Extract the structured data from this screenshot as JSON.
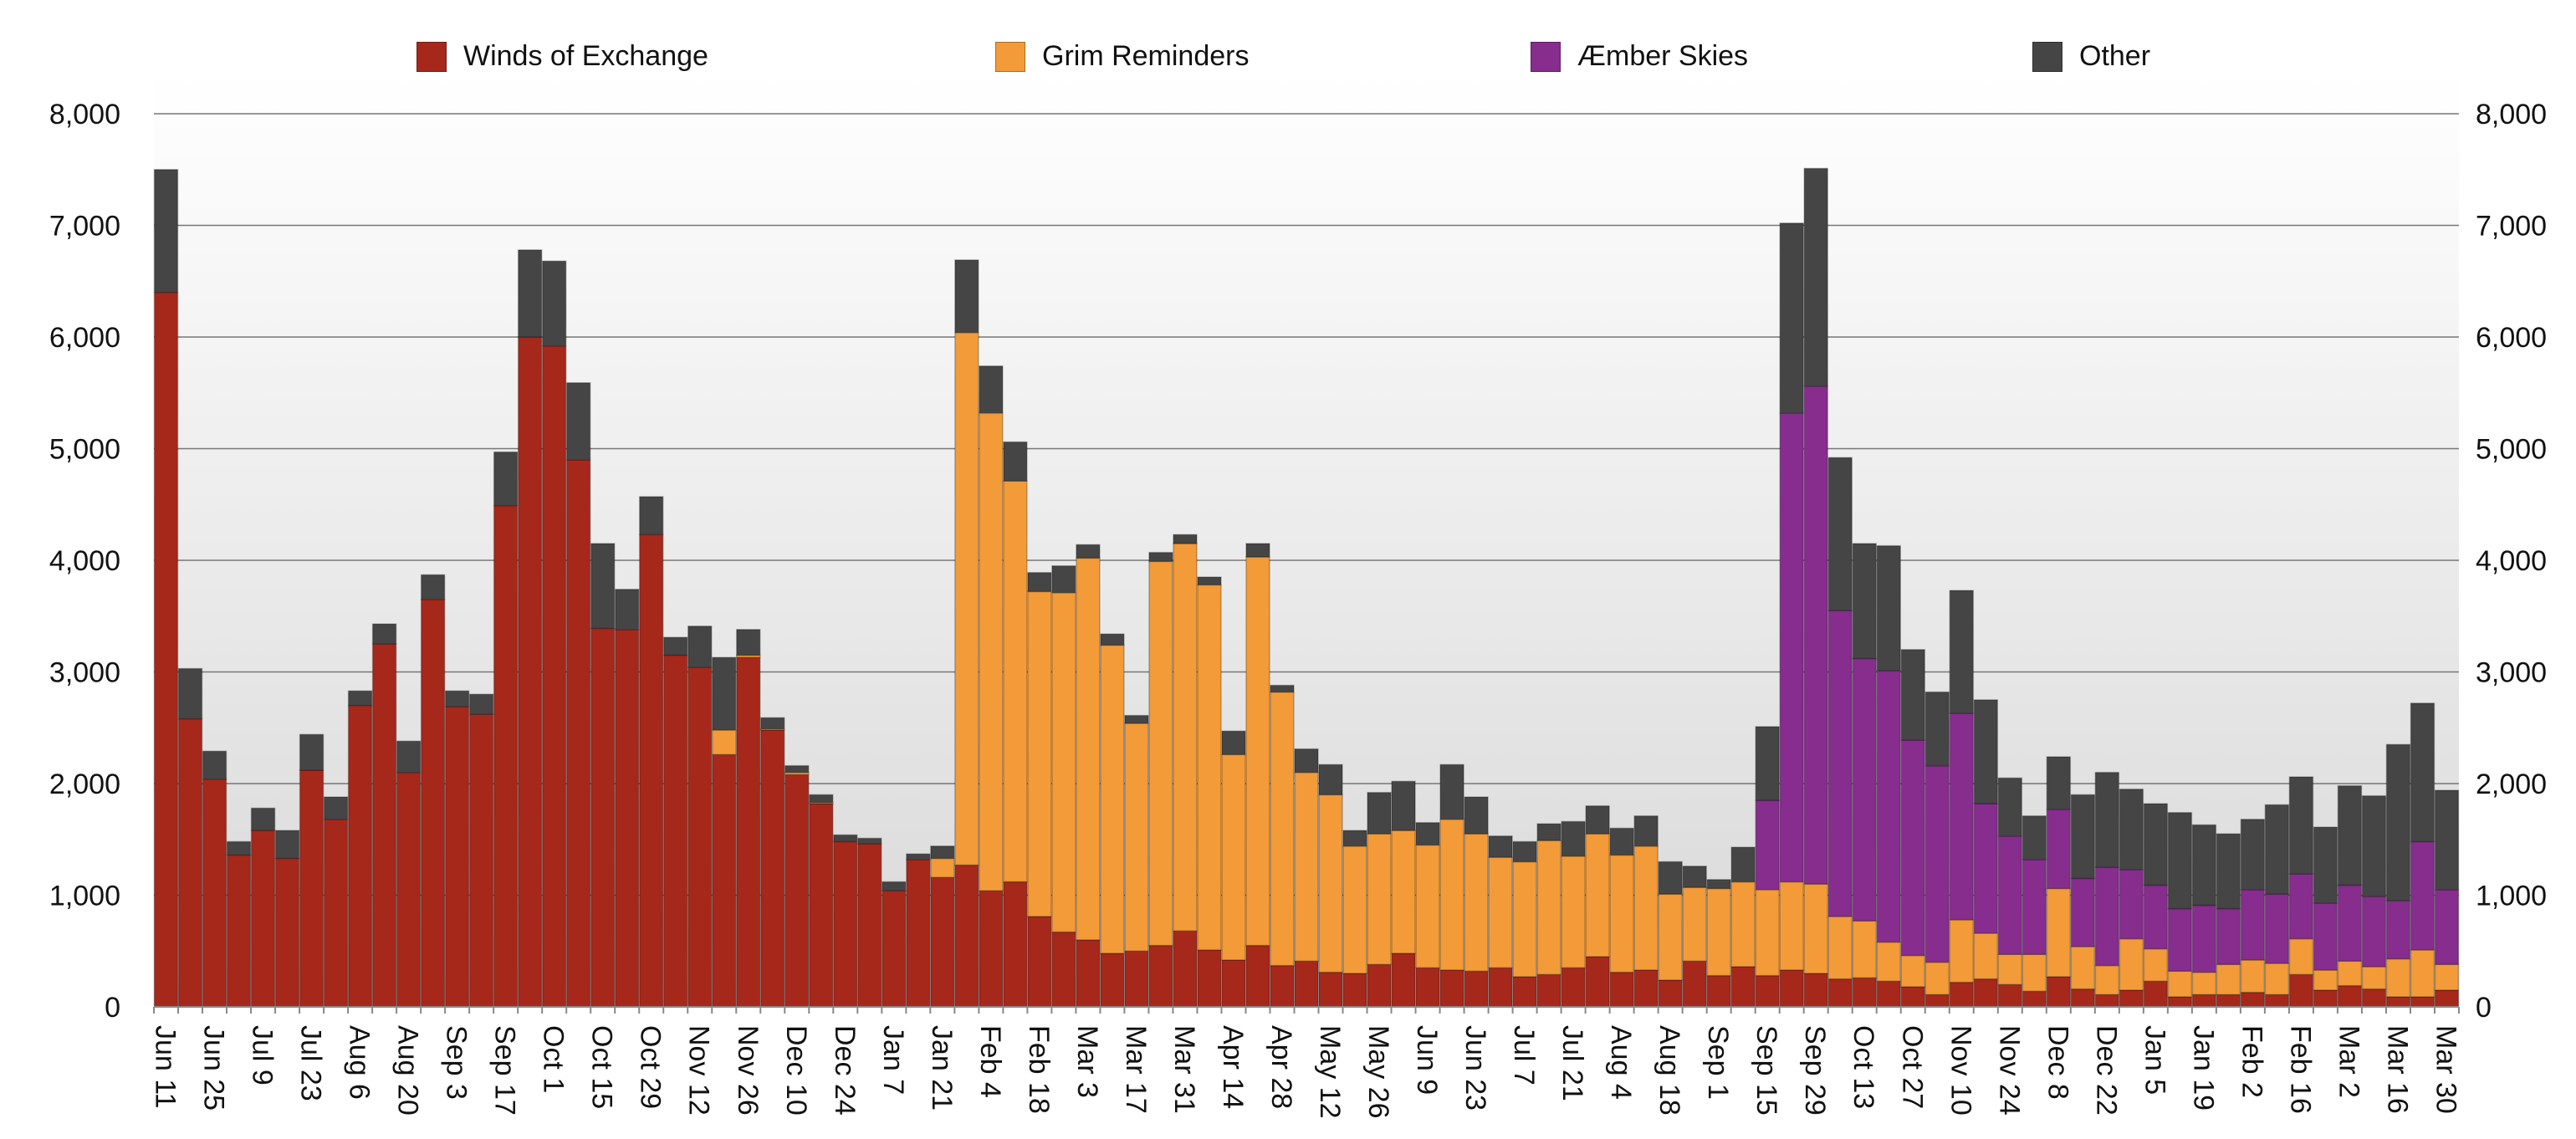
{
  "chart_data": {
    "type": "bar",
    "stacked": true,
    "title": "",
    "xlabel": "",
    "ylabel": "",
    "ylim": [
      0,
      8000
    ],
    "yticks": [
      "0",
      "1,000",
      "2,000",
      "3,000",
      "4,000",
      "5,000",
      "6,000",
      "7,000",
      "8,000"
    ],
    "grid": true,
    "legend_position": "top",
    "x_tick_labels": [
      "Jun 11",
      "Jun 25",
      "Jul 9",
      "Jul 23",
      "Aug 6",
      "Aug 20",
      "Sep 3",
      "Sep 17",
      "Oct 1",
      "Oct 15",
      "Oct 29",
      "Nov 12",
      "Nov 26",
      "Dec 10",
      "Dec 24",
      "Jan 7",
      "Jan 21",
      "Feb 4",
      "Feb 18",
      "Mar 3",
      "Mar 17",
      "Mar 31",
      "Apr 14",
      "Apr 28",
      "May 12",
      "May 26",
      "Jun 9",
      "Jun 23",
      "Jul 7",
      "Jul 21",
      "Aug 4",
      "Aug 18",
      "Sep 1",
      "Sep 15",
      "Sep 29",
      "Oct 13",
      "Oct 27",
      "Nov 10",
      "Nov 24",
      "Dec 8",
      "Dec 22",
      "Jan 5",
      "Jan 19",
      "Feb 2",
      "Feb 16",
      "Mar 2",
      "Mar 16",
      "Mar 30"
    ],
    "x_tick_every": 2,
    "series": [
      {
        "name": "Winds of Exchange",
        "color": "#a6281b",
        "values": [
          6400,
          2580,
          2040,
          1360,
          1580,
          1330,
          2120,
          1680,
          2700,
          3250,
          2100,
          3650,
          2690,
          2620,
          4490,
          6000,
          5920,
          4900,
          3390,
          3380,
          4230,
          3150,
          3040,
          2260,
          3130,
          2480,
          2080,
          1820,
          1480,
          1460,
          1040,
          1320,
          1160,
          1270,
          1040,
          1120,
          810,
          670,
          600,
          480,
          500,
          550,
          680,
          510,
          420,
          550,
          370,
          410,
          310,
          300,
          380,
          480,
          350,
          330,
          320,
          350,
          270,
          290,
          350,
          450,
          310,
          330,
          240,
          410,
          280,
          360,
          280,
          330,
          300,
          250,
          260,
          230,
          180,
          110,
          220,
          250,
          200,
          140,
          270,
          160,
          110,
          150,
          230,
          90,
          110,
          110,
          130,
          110,
          290,
          150,
          190,
          160,
          90,
          90,
          150
        ]
      },
      {
        "name": "Grim Reminders",
        "color": "#f29b38",
        "values": [
          0,
          0,
          0,
          0,
          0,
          0,
          0,
          0,
          0,
          0,
          0,
          0,
          0,
          0,
          0,
          0,
          0,
          0,
          0,
          0,
          0,
          0,
          0,
          220,
          20,
          10,
          20,
          10,
          0,
          0,
          0,
          0,
          170,
          4770,
          4280,
          3590,
          2910,
          3040,
          3420,
          2760,
          2040,
          3440,
          3470,
          3270,
          1840,
          3480,
          2450,
          1690,
          1590,
          1140,
          1170,
          1100,
          1100,
          1350,
          1230,
          990,
          1030,
          1200,
          1000,
          1100,
          1050,
          1110,
          770,
          660,
          780,
          760,
          770,
          790,
          800,
          560,
          510,
          350,
          280,
          290,
          560,
          410,
          270,
          330,
          790,
          380,
          260,
          460,
          290,
          230,
          200,
          270,
          290,
          280,
          320,
          180,
          220,
          200,
          340,
          420,
          230
        ]
      },
      {
        "name": "Æmber Skies",
        "color": "#862d8e",
        "values": [
          0,
          0,
          0,
          0,
          0,
          0,
          0,
          0,
          0,
          0,
          0,
          0,
          0,
          0,
          0,
          0,
          0,
          0,
          0,
          0,
          0,
          0,
          0,
          0,
          0,
          0,
          0,
          0,
          0,
          0,
          0,
          0,
          0,
          0,
          0,
          0,
          0,
          0,
          0,
          0,
          0,
          0,
          0,
          0,
          0,
          0,
          0,
          0,
          0,
          0,
          0,
          0,
          0,
          0,
          0,
          0,
          0,
          0,
          0,
          0,
          0,
          0,
          0,
          0,
          0,
          0,
          800,
          4200,
          4460,
          2740,
          2350,
          2430,
          1930,
          1760,
          1850,
          1160,
          1060,
          850,
          710,
          610,
          880,
          620,
          570,
          560,
          600,
          500,
          630,
          620,
          580,
          600,
          680,
          630,
          520,
          970,
          670
        ]
      },
      {
        "name": "Other",
        "color": "#454545",
        "values": [
          1100,
          450,
          250,
          120,
          200,
          250,
          320,
          200,
          130,
          180,
          280,
          220,
          140,
          180,
          480,
          780,
          760,
          690,
          760,
          360,
          340,
          160,
          370,
          650,
          230,
          100,
          60,
          70,
          60,
          50,
          80,
          50,
          110,
          650,
          420,
          350,
          170,
          240,
          120,
          100,
          70,
          80,
          80,
          70,
          210,
          120,
          60,
          210,
          270,
          140,
          370,
          440,
          200,
          490,
          330,
          190,
          180,
          150,
          310,
          250,
          240,
          270,
          290,
          190,
          80,
          310,
          660,
          1700,
          1950,
          1370,
          1030,
          1120,
          810,
          660,
          1100,
          930,
          520,
          390,
          470,
          750,
          850,
          720,
          730,
          860,
          720,
          670,
          630,
          800,
          870,
          680,
          890,
          900,
          1400,
          1240,
          890
        ]
      }
    ]
  }
}
